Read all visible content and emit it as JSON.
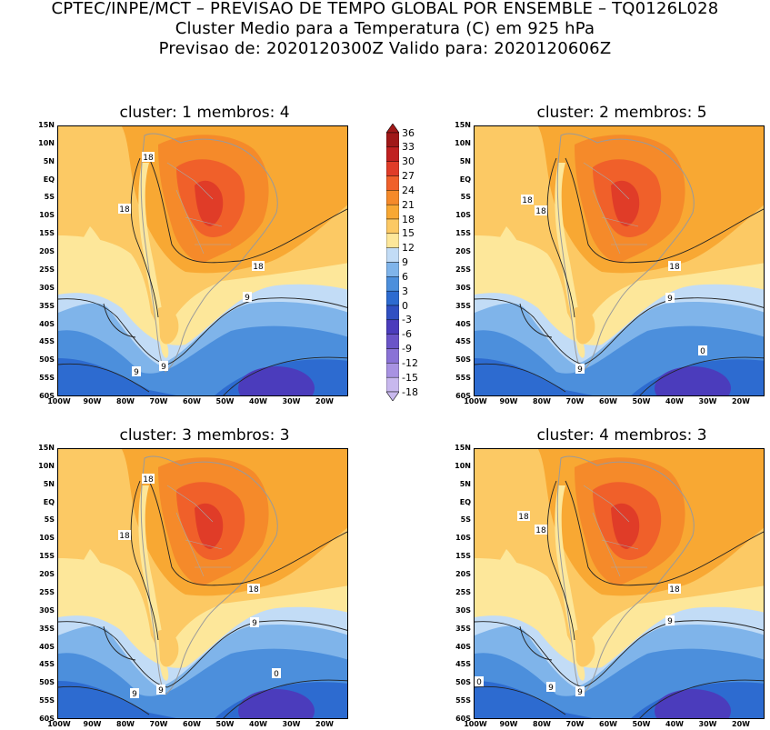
{
  "header": {
    "line1": "CPTEC/INPE/MCT – PREVISAO DE TEMPO GLOBAL POR ENSEMBLE – TQ0126L028",
    "line2": "Cluster Medio para a Temperatura (C) em 925 hPa",
    "line3": "Previsao de: 2020120300Z    Valido para: 2020120606Z"
  },
  "panels": [
    {
      "title": "cluster: 1   membros: 4"
    },
    {
      "title": "cluster: 2   membros: 5"
    },
    {
      "title": "cluster: 3   membros: 3"
    },
    {
      "title": "cluster: 4   membros: 3"
    }
  ],
  "axes": {
    "lat_labels": [
      "15N",
      "10N",
      "5N",
      "EQ",
      "5S",
      "10S",
      "15S",
      "20S",
      "25S",
      "30S",
      "35S",
      "40S",
      "45S",
      "50S",
      "55S",
      "60S"
    ],
    "lon_labels": [
      "100W",
      "90W",
      "80W",
      "70W",
      "60W",
      "50W",
      "40W",
      "30W",
      "20W"
    ]
  },
  "contour_labels": {
    "p1": [
      "18",
      "18",
      "18",
      "9",
      "9",
      "9"
    ],
    "p2": [
      "18",
      "18",
      "18",
      "9",
      "9",
      "0"
    ],
    "p3": [
      "18",
      "18",
      "18",
      "9",
      "9",
      "9",
      "0"
    ],
    "p4": [
      "18",
      "18",
      "18",
      "18",
      "9",
      "9",
      "9",
      "0"
    ]
  },
  "colorbar": {
    "labels": [
      "36",
      "33",
      "30",
      "27",
      "24",
      "21",
      "18",
      "15",
      "12",
      "9",
      "6",
      "3",
      "0",
      "-3",
      "-6",
      "-9",
      "-12",
      "-15",
      "-18"
    ],
    "colors": [
      "#a01818",
      "#c02020",
      "#e03c28",
      "#f0602a",
      "#f58a2a",
      "#f8a833",
      "#fcc964",
      "#fde79a",
      "#c2dcf6",
      "#7fb4ea",
      "#4c8fdc",
      "#2d6bd0",
      "#3050c2",
      "#4b3cbc",
      "#6a54c8",
      "#8a72d6",
      "#a892e2",
      "#c8b8ee"
    ]
  }
}
